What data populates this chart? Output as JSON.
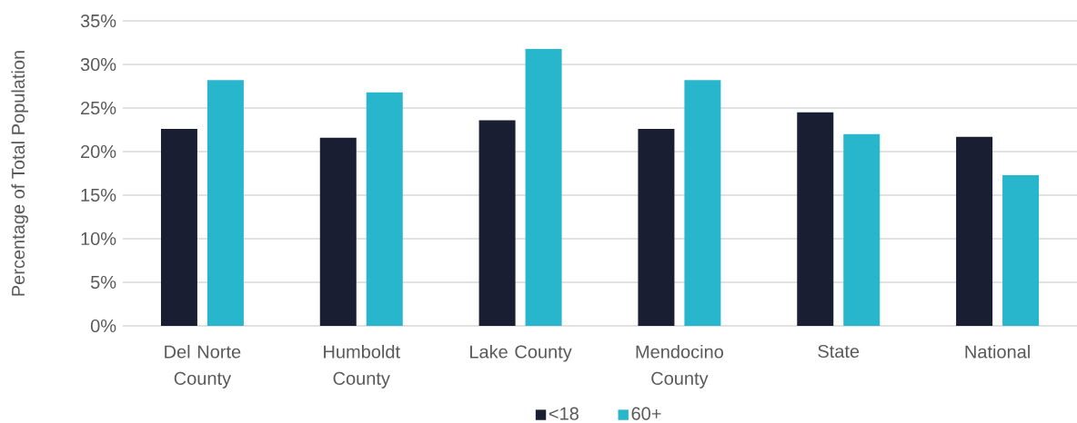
{
  "chart_data": {
    "type": "bar",
    "ylabel": "Percentage of Total Population",
    "categories": [
      "Del Norte County",
      "Humboldt County",
      "Lake County",
      "Mendocino County",
      "State",
      "National"
    ],
    "series": [
      {
        "name": "<18",
        "color": "#1a1e33",
        "values": [
          22.6,
          21.6,
          23.6,
          22.6,
          24.5,
          21.7
        ]
      },
      {
        "name": "60+",
        "color": "#27b6cc",
        "values": [
          28.2,
          26.8,
          31.8,
          28.2,
          22.0,
          17.3
        ]
      }
    ],
    "ylim": [
      0,
      35
    ],
    "yticks": [
      {
        "value": 0,
        "label": "0%"
      },
      {
        "value": 5,
        "label": "5%"
      },
      {
        "value": 10,
        "label": "10%"
      },
      {
        "value": 15,
        "label": "15%"
      },
      {
        "value": 20,
        "label": "20%"
      },
      {
        "value": 25,
        "label": "25%"
      },
      {
        "value": 30,
        "label": "30%"
      },
      {
        "value": 35,
        "label": "35%"
      }
    ],
    "grid": "y",
    "legend": "bottom"
  }
}
